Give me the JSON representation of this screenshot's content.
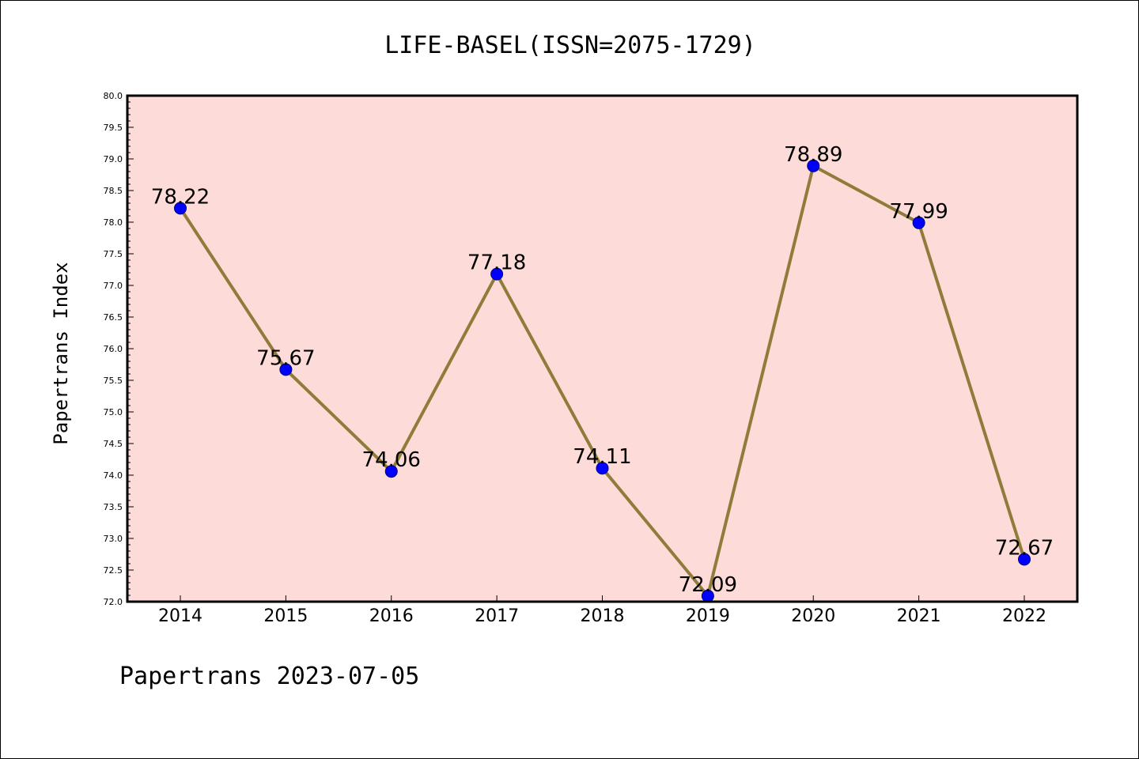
{
  "chart_data": {
    "type": "line",
    "title": "LIFE-BASEL(ISSN=2075-1729)",
    "xlabel": "",
    "ylabel": "Papertrans Index",
    "categories": [
      "2014",
      "2015",
      "2016",
      "2017",
      "2018",
      "2019",
      "2020",
      "2021",
      "2022"
    ],
    "series": [
      {
        "values": [
          78.22,
          75.67,
          74.06,
          77.18,
          74.11,
          72.09,
          78.89,
          77.99,
          72.67
        ],
        "labels": [
          "78.22",
          "75.67",
          "74.06",
          "77.18",
          "74.11",
          "72.09",
          "78.89",
          "77.99",
          "72.67"
        ]
      }
    ],
    "ylim": [
      72.0,
      80.0
    ],
    "yticks": [
      "72.0",
      "72.5",
      "73.0",
      "73.5",
      "74.0",
      "74.5",
      "75.0",
      "75.5",
      "76.0",
      "76.5",
      "77.0",
      "77.5",
      "78.0",
      "78.5",
      "79.0",
      "79.5",
      "80.0"
    ],
    "grid": false,
    "footer": "Papertrans 2023-07-05",
    "colors": {
      "plot_background": "#fddbd8",
      "line": "#8f7c3a",
      "marker_fill": "#0000ff",
      "marker_edge": "#000080"
    }
  }
}
